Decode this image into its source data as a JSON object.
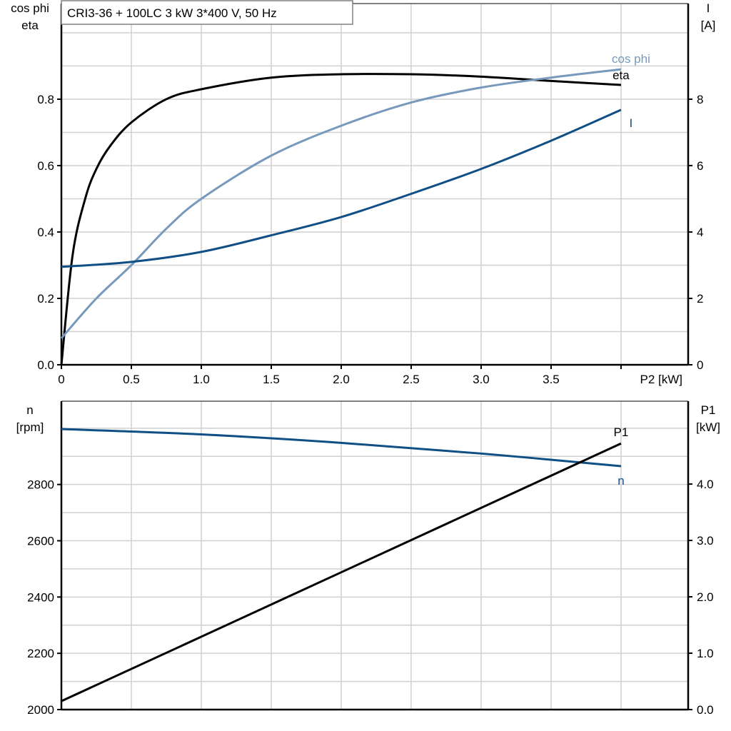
{
  "chart_data": [
    {
      "type": "line",
      "title": "CRI3-36 + 100LC   3 kW   3*400 V, 50 Hz",
      "xlabel": "P2 [kW]",
      "ylabel_left": [
        "cos phi",
        "eta"
      ],
      "ylabel_right": [
        "I",
        "[A]"
      ],
      "xlim": [
        0,
        4.48
      ],
      "ylim_left": [
        0,
        1.088
      ],
      "ylim_right": [
        0,
        10.88
      ],
      "x_ticks": [
        "0",
        "0.5",
        "1.0",
        "1.5",
        "2.0",
        "2.5",
        "3.0",
        "3.5"
      ],
      "y_ticks_left": [
        "0.0",
        "0.2",
        "0.4",
        "0.6",
        "0.8"
      ],
      "y_ticks_right": [
        "0",
        "2",
        "4",
        "6",
        "8"
      ],
      "grid": true,
      "series": [
        {
          "name": "eta",
          "axis": "left",
          "color": "#000000",
          "x": [
            0,
            0.08,
            0.17,
            0.25,
            0.35,
            0.5,
            0.75,
            1.0,
            1.5,
            2.0,
            2.5,
            3.0,
            3.5,
            4.0
          ],
          "y": [
            0,
            0.33,
            0.5,
            0.59,
            0.66,
            0.73,
            0.8,
            0.83,
            0.865,
            0.875,
            0.875,
            0.868,
            0.855,
            0.843
          ]
        },
        {
          "name": "cos phi",
          "axis": "left",
          "color": "#7799bb",
          "x": [
            0,
            0.25,
            0.5,
            0.75,
            1.0,
            1.5,
            2.0,
            2.5,
            3.0,
            3.5,
            4.0
          ],
          "y": [
            0.08,
            0.2,
            0.3,
            0.41,
            0.5,
            0.63,
            0.72,
            0.79,
            0.835,
            0.865,
            0.89
          ]
        },
        {
          "name": "I",
          "axis": "right",
          "color": "#104f86",
          "x": [
            0,
            0.5,
            1.0,
            1.5,
            2.0,
            2.5,
            3.0,
            3.5,
            4.0
          ],
          "y": [
            2.95,
            3.1,
            3.4,
            3.9,
            4.45,
            5.15,
            5.9,
            6.75,
            7.68
          ]
        }
      ]
    },
    {
      "type": "line",
      "ylabel_left": [
        "n",
        "[rpm]"
      ],
      "ylabel_right": [
        "P1",
        "[kW]"
      ],
      "xlim": [
        0,
        4.48
      ],
      "ylim_left": [
        2000,
        3096
      ],
      "ylim_right": [
        0,
        5.47
      ],
      "y_ticks_left": [
        "2000",
        "2200",
        "2400",
        "2600",
        "2800"
      ],
      "y_ticks_right": [
        "0.0",
        "1.0",
        "2.0",
        "3.0",
        "4.0"
      ],
      "grid": true,
      "series": [
        {
          "name": "n",
          "axis": "left",
          "color": "#104f86",
          "x": [
            0,
            1.0,
            2.0,
            3.0,
            4.0
          ],
          "y": [
            2997,
            2978,
            2948,
            2910,
            2865
          ]
        },
        {
          "name": "P1",
          "axis": "right",
          "color": "#000000",
          "x": [
            0,
            4.0
          ],
          "y": [
            0.15,
            4.72
          ]
        }
      ]
    }
  ]
}
